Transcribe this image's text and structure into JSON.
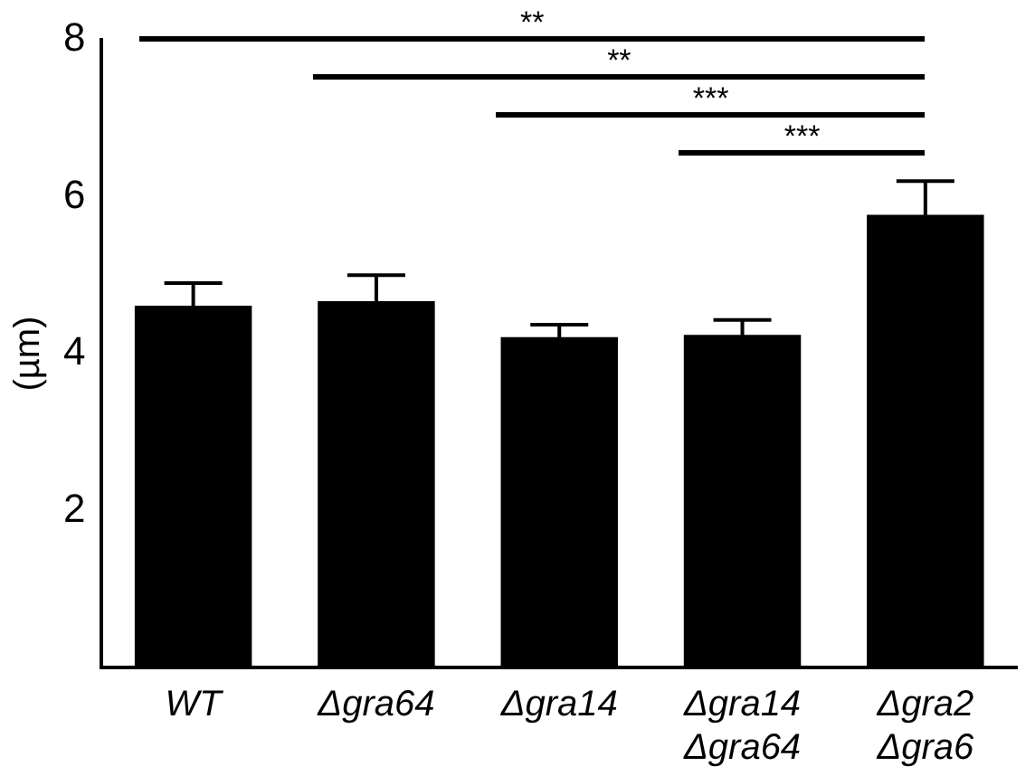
{
  "chart_data": {
    "type": "bar",
    "ylabel": "(µm)",
    "categories": [
      "WT",
      "Δgra64",
      "Δgra14",
      "Δgra14 Δgra64",
      "Δgra2 Δgra6"
    ],
    "values": [
      4.61,
      4.67,
      4.21,
      4.24,
      5.77
    ],
    "errors": [
      0.29,
      0.33,
      0.16,
      0.19,
      0.43
    ],
    "color": "#000000",
    "ylim": [
      0,
      8
    ],
    "yticks": [
      2,
      4,
      6,
      8
    ],
    "grid": false,
    "legend": false,
    "annotations": [
      "**",
      "**",
      "***",
      "***"
    ]
  }
}
